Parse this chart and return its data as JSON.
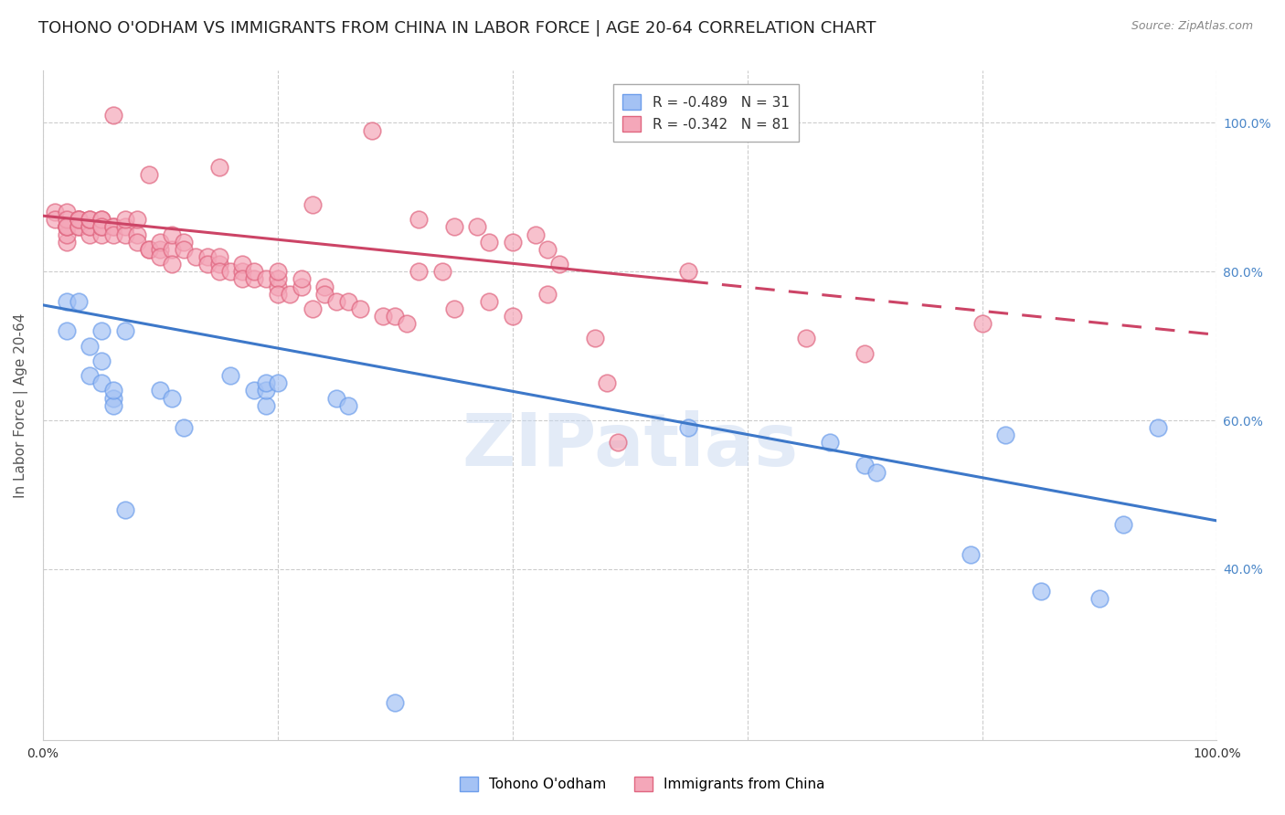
{
  "title": "TOHONO O'ODHAM VS IMMIGRANTS FROM CHINA IN LABOR FORCE | AGE 20-64 CORRELATION CHART",
  "source": "Source: ZipAtlas.com",
  "ylabel": "In Labor Force | Age 20-64",
  "xlim": [
    0.0,
    1.0
  ],
  "ylim": [
    0.17,
    1.07
  ],
  "x_ticks": [
    0.0,
    0.2,
    0.4,
    0.6,
    0.8,
    1.0
  ],
  "x_tick_labels": [
    "0.0%",
    "",
    "",
    "",
    "",
    "100.0%"
  ],
  "y_tick_labels_right": [
    "100.0%",
    "80.0%",
    "60.0%",
    "40.0%"
  ],
  "y_tick_positions_right": [
    1.0,
    0.8,
    0.6,
    0.4
  ],
  "watermark": "ZIPatlas",
  "blue_color": "#a4c2f4",
  "pink_color": "#f4a7b9",
  "blue_edge_color": "#6d9eeb",
  "pink_edge_color": "#e06680",
  "blue_line_color": "#3d78c9",
  "pink_line_color": "#cc4466",
  "legend_label_blue": "Tohono O'odham",
  "legend_label_pink": "Immigrants from China",
  "blue_scatter": [
    [
      0.02,
      0.76
    ],
    [
      0.02,
      0.72
    ],
    [
      0.03,
      0.76
    ],
    [
      0.04,
      0.66
    ],
    [
      0.04,
      0.7
    ],
    [
      0.05,
      0.68
    ],
    [
      0.05,
      0.72
    ],
    [
      0.05,
      0.65
    ],
    [
      0.06,
      0.63
    ],
    [
      0.06,
      0.62
    ],
    [
      0.06,
      0.64
    ],
    [
      0.07,
      0.72
    ],
    [
      0.07,
      0.48
    ],
    [
      0.1,
      0.64
    ],
    [
      0.11,
      0.63
    ],
    [
      0.12,
      0.59
    ],
    [
      0.16,
      0.66
    ],
    [
      0.18,
      0.64
    ],
    [
      0.19,
      0.62
    ],
    [
      0.19,
      0.64
    ],
    [
      0.19,
      0.65
    ],
    [
      0.2,
      0.65
    ],
    [
      0.25,
      0.63
    ],
    [
      0.26,
      0.62
    ],
    [
      0.3,
      0.22
    ],
    [
      0.55,
      0.59
    ],
    [
      0.67,
      0.57
    ],
    [
      0.7,
      0.54
    ],
    [
      0.71,
      0.53
    ],
    [
      0.79,
      0.42
    ],
    [
      0.82,
      0.58
    ],
    [
      0.85,
      0.37
    ],
    [
      0.9,
      0.36
    ],
    [
      0.92,
      0.46
    ],
    [
      0.95,
      0.59
    ]
  ],
  "pink_scatter": [
    [
      0.01,
      0.88
    ],
    [
      0.01,
      0.87
    ],
    [
      0.02,
      0.86
    ],
    [
      0.02,
      0.88
    ],
    [
      0.02,
      0.86
    ],
    [
      0.02,
      0.84
    ],
    [
      0.02,
      0.85
    ],
    [
      0.02,
      0.86
    ],
    [
      0.02,
      0.87
    ],
    [
      0.02,
      0.86
    ],
    [
      0.03,
      0.86
    ],
    [
      0.03,
      0.87
    ],
    [
      0.03,
      0.87
    ],
    [
      0.03,
      0.86
    ],
    [
      0.03,
      0.87
    ],
    [
      0.04,
      0.86
    ],
    [
      0.04,
      0.85
    ],
    [
      0.04,
      0.86
    ],
    [
      0.04,
      0.87
    ],
    [
      0.04,
      0.87
    ],
    [
      0.05,
      0.87
    ],
    [
      0.05,
      0.85
    ],
    [
      0.05,
      0.86
    ],
    [
      0.05,
      0.87
    ],
    [
      0.05,
      0.86
    ],
    [
      0.06,
      0.86
    ],
    [
      0.06,
      0.86
    ],
    [
      0.06,
      0.85
    ],
    [
      0.07,
      0.86
    ],
    [
      0.07,
      0.85
    ],
    [
      0.07,
      0.87
    ],
    [
      0.08,
      0.85
    ],
    [
      0.08,
      0.84
    ],
    [
      0.08,
      0.87
    ],
    [
      0.09,
      0.83
    ],
    [
      0.09,
      0.83
    ],
    [
      0.1,
      0.83
    ],
    [
      0.1,
      0.84
    ],
    [
      0.1,
      0.82
    ],
    [
      0.11,
      0.83
    ],
    [
      0.11,
      0.81
    ],
    [
      0.11,
      0.85
    ],
    [
      0.12,
      0.84
    ],
    [
      0.12,
      0.83
    ],
    [
      0.13,
      0.82
    ],
    [
      0.14,
      0.82
    ],
    [
      0.14,
      0.81
    ],
    [
      0.15,
      0.81
    ],
    [
      0.15,
      0.82
    ],
    [
      0.15,
      0.8
    ],
    [
      0.16,
      0.8
    ],
    [
      0.17,
      0.8
    ],
    [
      0.17,
      0.81
    ],
    [
      0.17,
      0.79
    ],
    [
      0.18,
      0.79
    ],
    [
      0.18,
      0.8
    ],
    [
      0.19,
      0.79
    ],
    [
      0.2,
      0.78
    ],
    [
      0.2,
      0.79
    ],
    [
      0.2,
      0.8
    ],
    [
      0.2,
      0.77
    ],
    [
      0.21,
      0.77
    ],
    [
      0.22,
      0.78
    ],
    [
      0.22,
      0.79
    ],
    [
      0.23,
      0.75
    ],
    [
      0.24,
      0.78
    ],
    [
      0.24,
      0.77
    ],
    [
      0.25,
      0.76
    ],
    [
      0.26,
      0.76
    ],
    [
      0.27,
      0.75
    ],
    [
      0.29,
      0.74
    ],
    [
      0.3,
      0.74
    ],
    [
      0.31,
      0.73
    ],
    [
      0.32,
      0.8
    ],
    [
      0.34,
      0.8
    ],
    [
      0.35,
      0.75
    ],
    [
      0.38,
      0.76
    ],
    [
      0.4,
      0.74
    ],
    [
      0.43,
      0.77
    ],
    [
      0.43,
      0.83
    ],
    [
      0.44,
      0.81
    ],
    [
      0.47,
      0.71
    ],
    [
      0.48,
      0.65
    ],
    [
      0.49,
      0.57
    ],
    [
      0.55,
      0.8
    ],
    [
      0.65,
      0.71
    ],
    [
      0.7,
      0.69
    ],
    [
      0.8,
      0.73
    ],
    [
      0.15,
      0.94
    ],
    [
      0.28,
      0.99
    ],
    [
      0.06,
      1.01
    ],
    [
      0.09,
      0.93
    ],
    [
      0.23,
      0.89
    ],
    [
      0.32,
      0.87
    ],
    [
      0.35,
      0.86
    ],
    [
      0.37,
      0.86
    ],
    [
      0.38,
      0.84
    ],
    [
      0.4,
      0.84
    ],
    [
      0.42,
      0.85
    ]
  ],
  "blue_line": {
    "x0": 0.0,
    "y0": 0.755,
    "x1": 1.0,
    "y1": 0.465
  },
  "pink_line": {
    "x0": 0.0,
    "y0": 0.875,
    "x1": 1.0,
    "y1": 0.715
  },
  "pink_line_solid_end": 0.55,
  "background_color": "#ffffff",
  "grid_color": "#cccccc",
  "title_fontsize": 13,
  "axis_fontsize": 11
}
